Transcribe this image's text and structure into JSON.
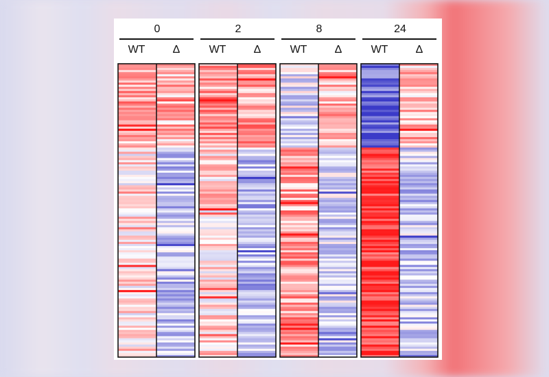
{
  "chart_data": {
    "type": "heatmap",
    "groups": [
      "0",
      "2",
      "8",
      "24"
    ],
    "conditions": [
      "WT",
      "Δ"
    ],
    "color_scale": {
      "low": "#3b3bc8",
      "mid": "#ffffff",
      "high": "#ff1a1a"
    },
    "rows": 140,
    "panels": [
      {
        "group": "0",
        "columns": [
          {
            "condition": "WT",
            "blocks": [
              {
                "rows": 40,
                "mean": 0.38
              },
              {
                "rows": 100,
                "mean": 0.12
              }
            ]
          },
          {
            "condition": "Δ",
            "blocks": [
              {
                "rows": 40,
                "mean": 0.3
              },
              {
                "rows": 100,
                "mean": -0.28
              }
            ]
          }
        ]
      },
      {
        "group": "2",
        "columns": [
          {
            "condition": "WT",
            "blocks": [
              {
                "rows": 40,
                "mean": 0.42
              },
              {
                "rows": 100,
                "mean": 0.15
              }
            ]
          },
          {
            "condition": "Δ",
            "blocks": [
              {
                "rows": 40,
                "mean": 0.4
              },
              {
                "rows": 100,
                "mean": -0.32
              }
            ]
          }
        ]
      },
      {
        "group": "8",
        "columns": [
          {
            "condition": "WT",
            "blocks": [
              {
                "rows": 40,
                "mean": -0.15
              },
              {
                "rows": 100,
                "mean": 0.38
              }
            ]
          },
          {
            "condition": "Δ",
            "blocks": [
              {
                "rows": 40,
                "mean": 0.28
              },
              {
                "rows": 100,
                "mean": -0.22
              }
            ]
          }
        ]
      },
      {
        "group": "24",
        "columns": [
          {
            "condition": "WT",
            "blocks": [
              {
                "rows": 40,
                "mean": -0.78
              },
              {
                "rows": 100,
                "mean": 0.88
              }
            ]
          },
          {
            "condition": "Δ",
            "blocks": [
              {
                "rows": 40,
                "mean": 0.3
              },
              {
                "rows": 100,
                "mean": -0.25
              }
            ]
          }
        ]
      }
    ]
  }
}
